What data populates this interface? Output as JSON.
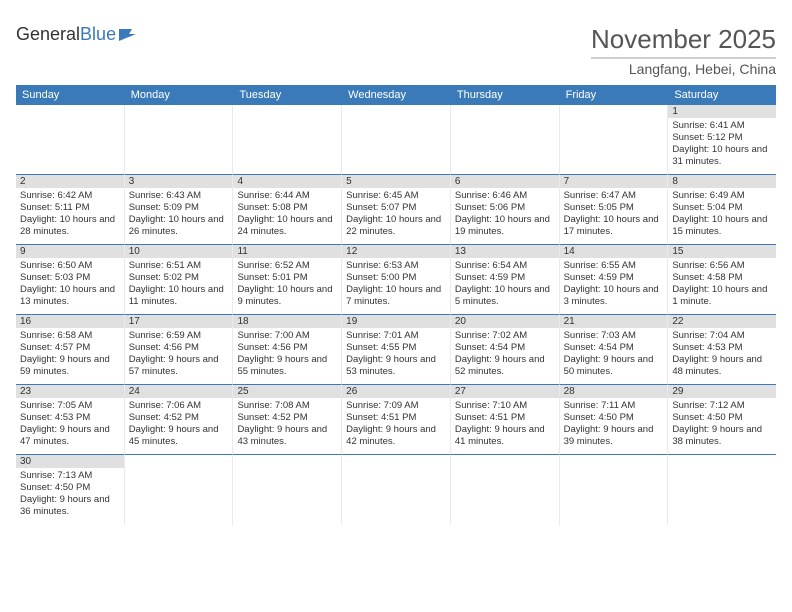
{
  "logo": {
    "general": "General",
    "blue": "Blue"
  },
  "title": "November 2025",
  "subtitle": "Langfang, Hebei, China",
  "colors": {
    "header_bg": "#3a7ab8",
    "header_text": "#ffffff",
    "daynum_bg": "#e0e0e0",
    "border": "#3a7ab8",
    "title_color": "#555555"
  },
  "dayHeaders": [
    "Sunday",
    "Monday",
    "Tuesday",
    "Wednesday",
    "Thursday",
    "Friday",
    "Saturday"
  ],
  "weeks": [
    [
      null,
      null,
      null,
      null,
      null,
      null,
      {
        "n": "1",
        "sr": "Sunrise: 6:41 AM",
        "ss": "Sunset: 5:12 PM",
        "dl": "Daylight: 10 hours and 31 minutes."
      }
    ],
    [
      {
        "n": "2",
        "sr": "Sunrise: 6:42 AM",
        "ss": "Sunset: 5:11 PM",
        "dl": "Daylight: 10 hours and 28 minutes."
      },
      {
        "n": "3",
        "sr": "Sunrise: 6:43 AM",
        "ss": "Sunset: 5:09 PM",
        "dl": "Daylight: 10 hours and 26 minutes."
      },
      {
        "n": "4",
        "sr": "Sunrise: 6:44 AM",
        "ss": "Sunset: 5:08 PM",
        "dl": "Daylight: 10 hours and 24 minutes."
      },
      {
        "n": "5",
        "sr": "Sunrise: 6:45 AM",
        "ss": "Sunset: 5:07 PM",
        "dl": "Daylight: 10 hours and 22 minutes."
      },
      {
        "n": "6",
        "sr": "Sunrise: 6:46 AM",
        "ss": "Sunset: 5:06 PM",
        "dl": "Daylight: 10 hours and 19 minutes."
      },
      {
        "n": "7",
        "sr": "Sunrise: 6:47 AM",
        "ss": "Sunset: 5:05 PM",
        "dl": "Daylight: 10 hours and 17 minutes."
      },
      {
        "n": "8",
        "sr": "Sunrise: 6:49 AM",
        "ss": "Sunset: 5:04 PM",
        "dl": "Daylight: 10 hours and 15 minutes."
      }
    ],
    [
      {
        "n": "9",
        "sr": "Sunrise: 6:50 AM",
        "ss": "Sunset: 5:03 PM",
        "dl": "Daylight: 10 hours and 13 minutes."
      },
      {
        "n": "10",
        "sr": "Sunrise: 6:51 AM",
        "ss": "Sunset: 5:02 PM",
        "dl": "Daylight: 10 hours and 11 minutes."
      },
      {
        "n": "11",
        "sr": "Sunrise: 6:52 AM",
        "ss": "Sunset: 5:01 PM",
        "dl": "Daylight: 10 hours and 9 minutes."
      },
      {
        "n": "12",
        "sr": "Sunrise: 6:53 AM",
        "ss": "Sunset: 5:00 PM",
        "dl": "Daylight: 10 hours and 7 minutes."
      },
      {
        "n": "13",
        "sr": "Sunrise: 6:54 AM",
        "ss": "Sunset: 4:59 PM",
        "dl": "Daylight: 10 hours and 5 minutes."
      },
      {
        "n": "14",
        "sr": "Sunrise: 6:55 AM",
        "ss": "Sunset: 4:59 PM",
        "dl": "Daylight: 10 hours and 3 minutes."
      },
      {
        "n": "15",
        "sr": "Sunrise: 6:56 AM",
        "ss": "Sunset: 4:58 PM",
        "dl": "Daylight: 10 hours and 1 minute."
      }
    ],
    [
      {
        "n": "16",
        "sr": "Sunrise: 6:58 AM",
        "ss": "Sunset: 4:57 PM",
        "dl": "Daylight: 9 hours and 59 minutes."
      },
      {
        "n": "17",
        "sr": "Sunrise: 6:59 AM",
        "ss": "Sunset: 4:56 PM",
        "dl": "Daylight: 9 hours and 57 minutes."
      },
      {
        "n": "18",
        "sr": "Sunrise: 7:00 AM",
        "ss": "Sunset: 4:56 PM",
        "dl": "Daylight: 9 hours and 55 minutes."
      },
      {
        "n": "19",
        "sr": "Sunrise: 7:01 AM",
        "ss": "Sunset: 4:55 PM",
        "dl": "Daylight: 9 hours and 53 minutes."
      },
      {
        "n": "20",
        "sr": "Sunrise: 7:02 AM",
        "ss": "Sunset: 4:54 PM",
        "dl": "Daylight: 9 hours and 52 minutes."
      },
      {
        "n": "21",
        "sr": "Sunrise: 7:03 AM",
        "ss": "Sunset: 4:54 PM",
        "dl": "Daylight: 9 hours and 50 minutes."
      },
      {
        "n": "22",
        "sr": "Sunrise: 7:04 AM",
        "ss": "Sunset: 4:53 PM",
        "dl": "Daylight: 9 hours and 48 minutes."
      }
    ],
    [
      {
        "n": "23",
        "sr": "Sunrise: 7:05 AM",
        "ss": "Sunset: 4:53 PM",
        "dl": "Daylight: 9 hours and 47 minutes."
      },
      {
        "n": "24",
        "sr": "Sunrise: 7:06 AM",
        "ss": "Sunset: 4:52 PM",
        "dl": "Daylight: 9 hours and 45 minutes."
      },
      {
        "n": "25",
        "sr": "Sunrise: 7:08 AM",
        "ss": "Sunset: 4:52 PM",
        "dl": "Daylight: 9 hours and 43 minutes."
      },
      {
        "n": "26",
        "sr": "Sunrise: 7:09 AM",
        "ss": "Sunset: 4:51 PM",
        "dl": "Daylight: 9 hours and 42 minutes."
      },
      {
        "n": "27",
        "sr": "Sunrise: 7:10 AM",
        "ss": "Sunset: 4:51 PM",
        "dl": "Daylight: 9 hours and 41 minutes."
      },
      {
        "n": "28",
        "sr": "Sunrise: 7:11 AM",
        "ss": "Sunset: 4:50 PM",
        "dl": "Daylight: 9 hours and 39 minutes."
      },
      {
        "n": "29",
        "sr": "Sunrise: 7:12 AM",
        "ss": "Sunset: 4:50 PM",
        "dl": "Daylight: 9 hours and 38 minutes."
      }
    ],
    [
      {
        "n": "30",
        "sr": "Sunrise: 7:13 AM",
        "ss": "Sunset: 4:50 PM",
        "dl": "Daylight: 9 hours and 36 minutes."
      },
      null,
      null,
      null,
      null,
      null,
      null
    ]
  ]
}
